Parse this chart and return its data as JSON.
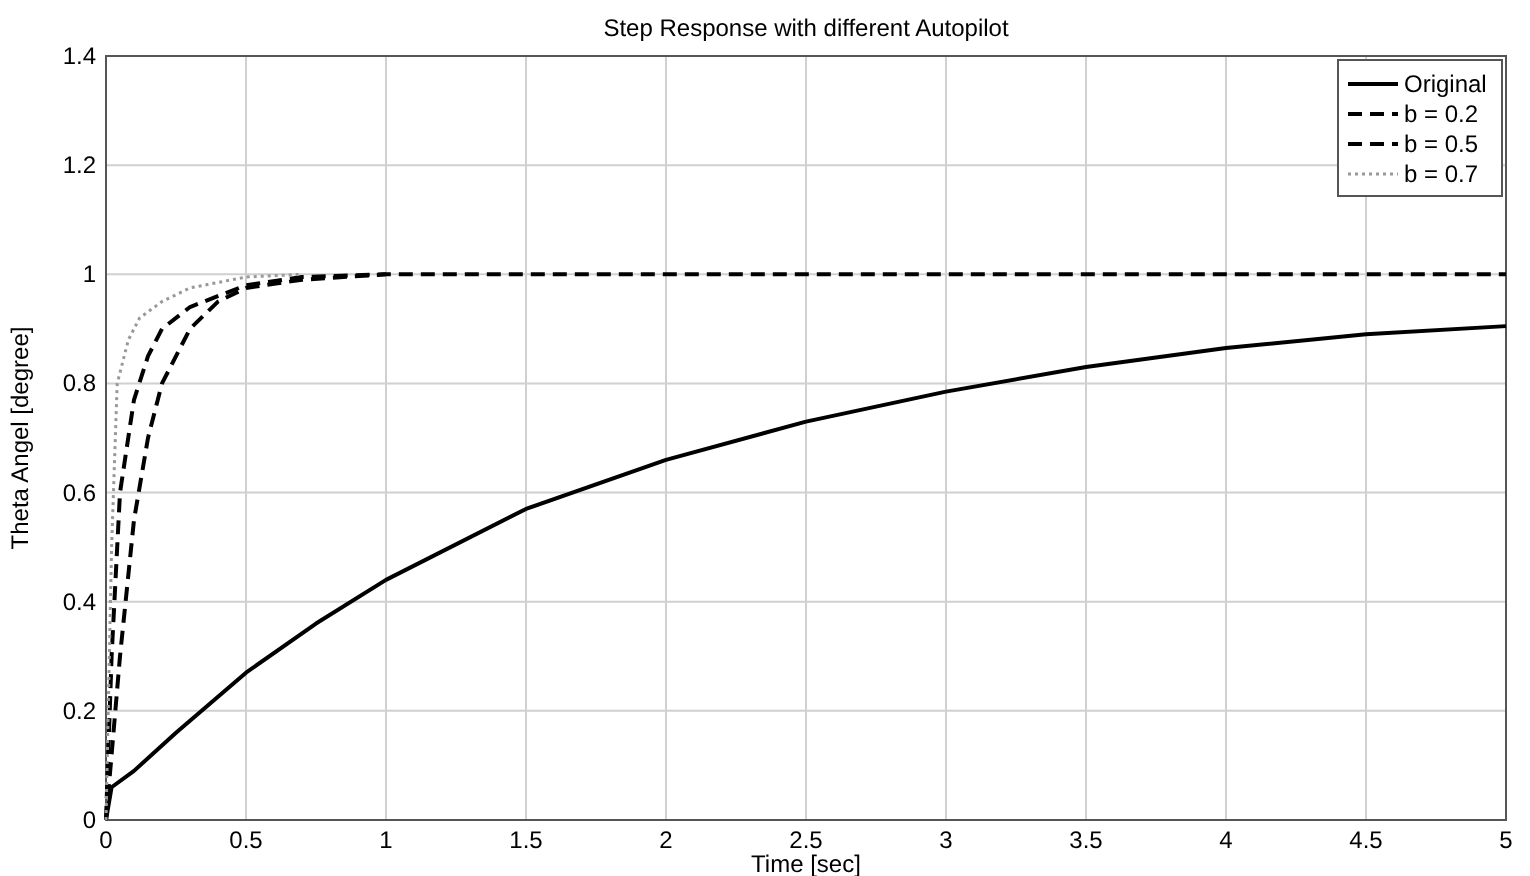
{
  "chart_data": {
    "type": "line",
    "title": "Step Response with different Autopilot",
    "xlabel": "Time [sec]",
    "ylabel": "Theta Angel [degree]",
    "xlim": [
      0,
      5
    ],
    "ylim": [
      0,
      1.4
    ],
    "xticks": [
      0,
      0.5,
      1,
      1.5,
      2,
      2.5,
      3,
      3.5,
      4,
      4.5,
      5
    ],
    "yticks": [
      0,
      0.2,
      0.4,
      0.6,
      0.8,
      1,
      1.2,
      1.4
    ],
    "grid": true,
    "legend": "top right",
    "series": [
      {
        "name": "Original",
        "color": "#000000",
        "line_style": "solid",
        "x": [
          0,
          0.02,
          0.1,
          0.25,
          0.5,
          0.75,
          1,
          1.5,
          2,
          2.5,
          3,
          3.5,
          4,
          4.5,
          5
        ],
        "values": [
          0,
          0.06,
          0.09,
          0.16,
          0.27,
          0.36,
          0.44,
          0.57,
          0.66,
          0.73,
          0.785,
          0.83,
          0.865,
          0.89,
          0.905
        ]
      },
      {
        "name": "b = 0.2",
        "color": "#000000",
        "line_style": "dashed",
        "x": [
          0,
          0.02,
          0.05,
          0.1,
          0.15,
          0.2,
          0.3,
          0.4,
          0.5,
          0.7,
          1,
          5
        ],
        "values": [
          0,
          0.12,
          0.3,
          0.55,
          0.7,
          0.8,
          0.9,
          0.95,
          0.975,
          0.99,
          1,
          1
        ]
      },
      {
        "name": "b = 0.5",
        "color": "#000000",
        "line_style": "dashed",
        "x": [
          0,
          0.02,
          0.05,
          0.1,
          0.15,
          0.2,
          0.3,
          0.5,
          0.7,
          1
        ],
        "values": [
          0,
          0.3,
          0.6,
          0.77,
          0.85,
          0.9,
          0.94,
          0.98,
          0.995,
          1
        ]
      },
      {
        "name": "b = 0.7",
        "color": "#999999",
        "line_style": "dotted",
        "x": [
          0,
          0.02,
          0.04,
          0.08,
          0.12,
          0.2,
          0.3,
          0.5,
          0.7
        ],
        "values": [
          0,
          0.5,
          0.8,
          0.88,
          0.92,
          0.95,
          0.975,
          0.995,
          1
        ]
      }
    ]
  }
}
